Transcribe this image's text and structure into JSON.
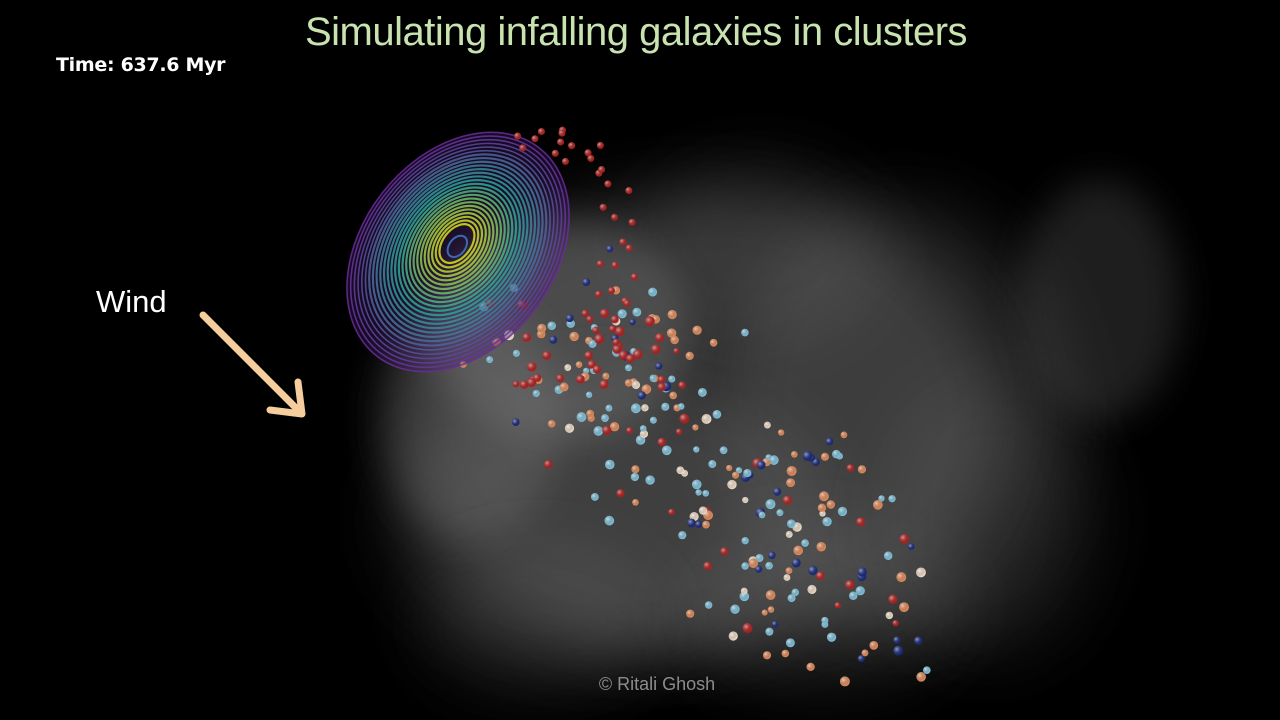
{
  "slide": {
    "title": "Simulating infalling galaxies in clusters",
    "time_label": "Time: 637.6 Myr",
    "wind_label": "Wind",
    "credit": "©  Ritali Ghosh"
  },
  "colors": {
    "title": "#c8e3b0",
    "wind_arrow": "#f6cd9c",
    "background": "#000000",
    "gas": "#8a8a8a",
    "disk_outer": "#6a2d9a",
    "disk_mid": "#2aa89a",
    "disk_inner": "#d8e21c",
    "particle_red": "#b02020",
    "particle_orange": "#e08a5a",
    "particle_light": "#f0dcc8",
    "particle_blue": "#7fc0da",
    "particle_navy": "#1a2a7a"
  },
  "icons": {
    "wind_arrow": "arrow-down-right-icon"
  }
}
